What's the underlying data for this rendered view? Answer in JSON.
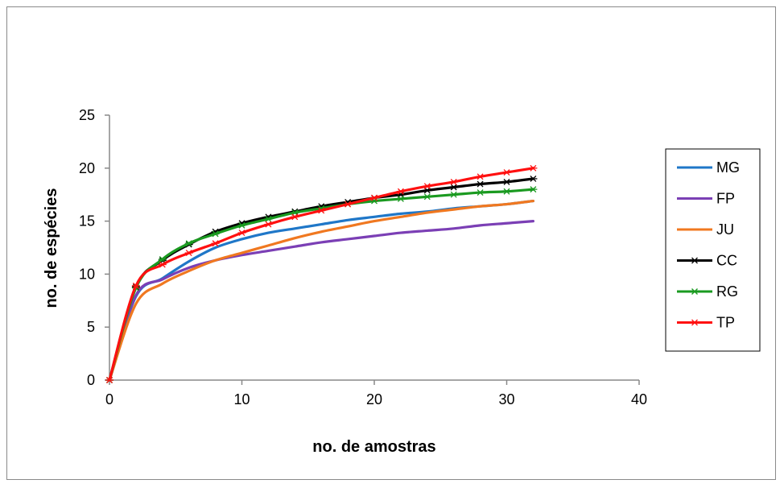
{
  "chart_data": {
    "type": "line",
    "title": "",
    "xlabel": "no. de amostras",
    "ylabel": "no. de espécies",
    "xlim": [
      0,
      40
    ],
    "ylim": [
      0,
      25
    ],
    "xticks": [
      "0",
      "10",
      "20",
      "30",
      "40"
    ],
    "yticks": [
      "0",
      "5",
      "10",
      "15",
      "20",
      "25"
    ],
    "grid": false,
    "legend_position": "right",
    "x": [
      0,
      2,
      4,
      6,
      8,
      10,
      12,
      14,
      16,
      18,
      20,
      22,
      24,
      26,
      28,
      30,
      32
    ],
    "series": [
      {
        "name": "MG",
        "color": "#1f77c8",
        "marker": "none",
        "values": [
          0,
          7.9,
          9.6,
          11.2,
          12.5,
          13.3,
          13.9,
          14.3,
          14.7,
          15.1,
          15.4,
          15.7,
          15.9,
          16.2,
          16.4,
          16.6,
          16.9
        ]
      },
      {
        "name": "FP",
        "color": "#7b3fb5",
        "marker": "none",
        "values": [
          0,
          8.0,
          9.5,
          10.6,
          11.3,
          11.8,
          12.2,
          12.6,
          13.0,
          13.3,
          13.6,
          13.9,
          14.1,
          14.3,
          14.6,
          14.8,
          15.0
        ]
      },
      {
        "name": "JU",
        "color": "#f07820",
        "marker": "none",
        "values": [
          0,
          7.2,
          9.1,
          10.3,
          11.3,
          12.0,
          12.7,
          13.4,
          14.0,
          14.5,
          15.0,
          15.4,
          15.8,
          16.1,
          16.4,
          16.6,
          16.9
        ]
      },
      {
        "name": "CC",
        "color": "#000000",
        "marker": "asterisk",
        "values": [
          0,
          8.8,
          11.3,
          12.8,
          14.0,
          14.8,
          15.4,
          15.9,
          16.4,
          16.8,
          17.2,
          17.5,
          17.9,
          18.2,
          18.5,
          18.7,
          19.0
        ]
      },
      {
        "name": "RG",
        "color": "#1a9a20",
        "marker": "asterisk",
        "values": [
          0,
          8.7,
          11.4,
          12.9,
          13.8,
          14.6,
          15.2,
          15.8,
          16.2,
          16.6,
          16.9,
          17.1,
          17.3,
          17.5,
          17.7,
          17.8,
          18.0
        ]
      },
      {
        "name": "TP",
        "color": "#ff1010",
        "marker": "asterisk",
        "values": [
          0,
          8.9,
          10.9,
          12.0,
          12.9,
          13.9,
          14.7,
          15.4,
          16.0,
          16.6,
          17.2,
          17.8,
          18.3,
          18.7,
          19.2,
          19.6,
          20.0
        ]
      }
    ]
  }
}
